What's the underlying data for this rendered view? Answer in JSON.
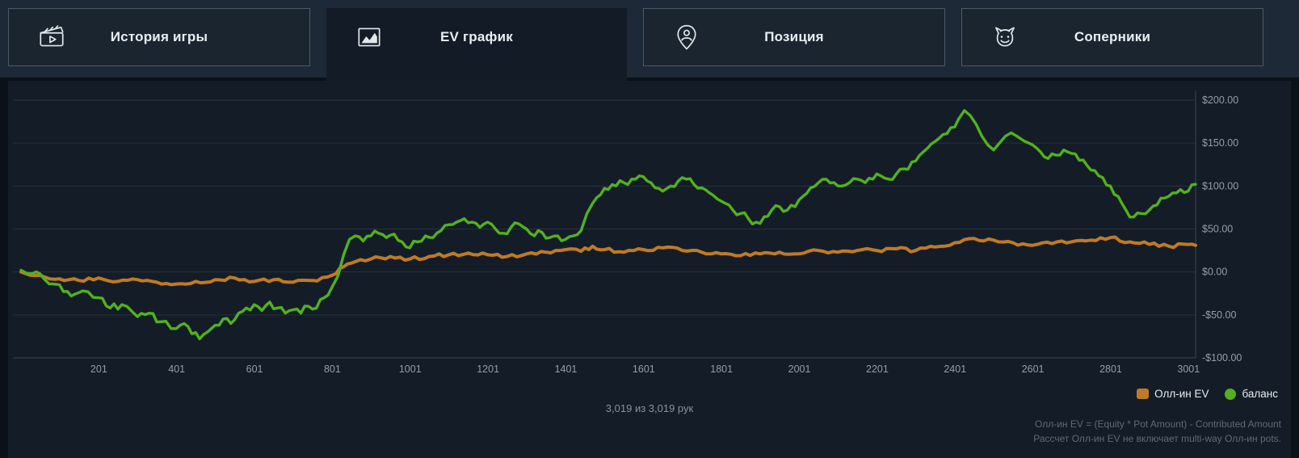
{
  "tabs": [
    {
      "label": "История игры",
      "active": false
    },
    {
      "label": "EV график",
      "active": true
    },
    {
      "label": "Позиция",
      "active": false
    },
    {
      "label": "Соперники",
      "active": false
    }
  ],
  "status": {
    "hands_text": "3,019 из 3,019 рук"
  },
  "legend": [
    {
      "label": "Олл-ин EV",
      "color": "#c07a26",
      "shape": "square"
    },
    {
      "label": "баланс",
      "color": "#53b11c",
      "shape": "circle"
    }
  ],
  "footnote": {
    "line1": "Олл-ин EV = (Equity * Pot Amount) - Contributed Amount",
    "line2": "Рассчет Олл-ин EV не включает multi-way Олл-ин pots."
  },
  "chart_data": {
    "type": "line",
    "title": "",
    "xlabel": "",
    "ylabel": "",
    "xlim": [
      1,
      3019
    ],
    "ylim": [
      -100,
      200
    ],
    "grid": true,
    "legend_position": "bottom-right",
    "x_ticks": [
      201,
      401,
      601,
      801,
      1001,
      1201,
      1401,
      1601,
      1801,
      2001,
      2201,
      2401,
      2601,
      2801,
      3001
    ],
    "y_ticks": [
      {
        "value": 200,
        "label": "$200.00"
      },
      {
        "value": 150,
        "label": "$150.00"
      },
      {
        "value": 100,
        "label": "$100.00"
      },
      {
        "value": 50,
        "label": "$50.00"
      },
      {
        "value": 0,
        "label": "$0.00"
      },
      {
        "value": -50,
        "label": "-$50.00"
      },
      {
        "value": -100,
        "label": "-$100.00"
      }
    ],
    "series": [
      {
        "name": "Олл-ин EV",
        "color": "#c07a26",
        "points": [
          [
            1,
            0
          ],
          [
            50,
            -4
          ],
          [
            100,
            -8
          ],
          [
            150,
            -10
          ],
          [
            200,
            -7
          ],
          [
            250,
            -11
          ],
          [
            300,
            -9
          ],
          [
            350,
            -12
          ],
          [
            400,
            -14
          ],
          [
            450,
            -11
          ],
          [
            500,
            -9
          ],
          [
            550,
            -7
          ],
          [
            600,
            -11
          ],
          [
            650,
            -9
          ],
          [
            700,
            -12
          ],
          [
            750,
            -10
          ],
          [
            800,
            -4
          ],
          [
            830,
            6
          ],
          [
            860,
            12
          ],
          [
            900,
            15
          ],
          [
            950,
            18
          ],
          [
            1000,
            15
          ],
          [
            1050,
            18
          ],
          [
            1100,
            20
          ],
          [
            1150,
            22
          ],
          [
            1200,
            20
          ],
          [
            1250,
            18
          ],
          [
            1300,
            21
          ],
          [
            1350,
            23
          ],
          [
            1400,
            26
          ],
          [
            1440,
            24
          ],
          [
            1470,
            30
          ],
          [
            1500,
            26
          ],
          [
            1550,
            23
          ],
          [
            1600,
            26
          ],
          [
            1650,
            28
          ],
          [
            1700,
            25
          ],
          [
            1750,
            23
          ],
          [
            1800,
            21
          ],
          [
            1850,
            19
          ],
          [
            1900,
            21
          ],
          [
            1950,
            23
          ],
          [
            2000,
            21
          ],
          [
            2050,
            25
          ],
          [
            2100,
            23
          ],
          [
            2150,
            25
          ],
          [
            2200,
            25
          ],
          [
            2250,
            27
          ],
          [
            2300,
            25
          ],
          [
            2350,
            29
          ],
          [
            2400,
            34
          ],
          [
            2450,
            39
          ],
          [
            2500,
            37
          ],
          [
            2550,
            34
          ],
          [
            2600,
            31
          ],
          [
            2650,
            33
          ],
          [
            2700,
            35
          ],
          [
            2750,
            37
          ],
          [
            2800,
            40
          ],
          [
            2850,
            35
          ],
          [
            2900,
            32
          ],
          [
            2950,
            30
          ],
          [
            3000,
            32
          ],
          [
            3019,
            31
          ]
        ]
      },
      {
        "name": "баланс",
        "color": "#53b11c",
        "points": [
          [
            1,
            2
          ],
          [
            30,
            -2
          ],
          [
            60,
            -8
          ],
          [
            100,
            -15
          ],
          [
            130,
            -28
          ],
          [
            160,
            -22
          ],
          [
            200,
            -30
          ],
          [
            230,
            -42
          ],
          [
            260,
            -38
          ],
          [
            300,
            -52
          ],
          [
            330,
            -48
          ],
          [
            360,
            -58
          ],
          [
            400,
            -66
          ],
          [
            420,
            -60
          ],
          [
            440,
            -72
          ],
          [
            460,
            -78
          ],
          [
            480,
            -70
          ],
          [
            500,
            -62
          ],
          [
            520,
            -55
          ],
          [
            540,
            -60
          ],
          [
            560,
            -48
          ],
          [
            580,
            -42
          ],
          [
            600,
            -38
          ],
          [
            620,
            -45
          ],
          [
            640,
            -35
          ],
          [
            660,
            -42
          ],
          [
            680,
            -48
          ],
          [
            700,
            -44
          ],
          [
            720,
            -48
          ],
          [
            740,
            -40
          ],
          [
            760,
            -42
          ],
          [
            780,
            -30
          ],
          [
            800,
            -18
          ],
          [
            815,
            -5
          ],
          [
            830,
            20
          ],
          [
            845,
            38
          ],
          [
            860,
            42
          ],
          [
            880,
            36
          ],
          [
            900,
            42
          ],
          [
            920,
            45
          ],
          [
            940,
            40
          ],
          [
            960,
            44
          ],
          [
            980,
            35
          ],
          [
            1000,
            28
          ],
          [
            1020,
            35
          ],
          [
            1040,
            42
          ],
          [
            1060,
            40
          ],
          [
            1080,
            48
          ],
          [
            1100,
            55
          ],
          [
            1120,
            58
          ],
          [
            1140,
            62
          ],
          [
            1160,
            58
          ],
          [
            1180,
            52
          ],
          [
            1200,
            58
          ],
          [
            1220,
            50
          ],
          [
            1240,
            45
          ],
          [
            1260,
            52
          ],
          [
            1280,
            56
          ],
          [
            1300,
            50
          ],
          [
            1320,
            42
          ],
          [
            1340,
            46
          ],
          [
            1360,
            40
          ],
          [
            1380,
            42
          ],
          [
            1400,
            38
          ],
          [
            1420,
            42
          ],
          [
            1440,
            48
          ],
          [
            1455,
            68
          ],
          [
            1470,
            80
          ],
          [
            1490,
            90
          ],
          [
            1510,
            96
          ],
          [
            1530,
            100
          ],
          [
            1550,
            104
          ],
          [
            1570,
            108
          ],
          [
            1590,
            112
          ],
          [
            1610,
            106
          ],
          [
            1630,
            98
          ],
          [
            1650,
            94
          ],
          [
            1670,
            100
          ],
          [
            1690,
            106
          ],
          [
            1710,
            108
          ],
          [
            1730,
            102
          ],
          [
            1750,
            98
          ],
          [
            1770,
            92
          ],
          [
            1790,
            85
          ],
          [
            1810,
            80
          ],
          [
            1830,
            72
          ],
          [
            1850,
            68
          ],
          [
            1870,
            62
          ],
          [
            1890,
            58
          ],
          [
            1910,
            64
          ],
          [
            1930,
            72
          ],
          [
            1950,
            76
          ],
          [
            1970,
            72
          ],
          [
            1990,
            76
          ],
          [
            2010,
            88
          ],
          [
            2030,
            98
          ],
          [
            2050,
            104
          ],
          [
            2070,
            108
          ],
          [
            2090,
            104
          ],
          [
            2110,
            100
          ],
          [
            2130,
            104
          ],
          [
            2150,
            108
          ],
          [
            2170,
            104
          ],
          [
            2190,
            108
          ],
          [
            2210,
            112
          ],
          [
            2230,
            108
          ],
          [
            2250,
            114
          ],
          [
            2270,
            120
          ],
          [
            2290,
            128
          ],
          [
            2310,
            136
          ],
          [
            2330,
            144
          ],
          [
            2350,
            152
          ],
          [
            2370,
            160
          ],
          [
            2390,
            168
          ],
          [
            2410,
            178
          ],
          [
            2425,
            188
          ],
          [
            2440,
            182
          ],
          [
            2455,
            172
          ],
          [
            2470,
            158
          ],
          [
            2485,
            148
          ],
          [
            2500,
            142
          ],
          [
            2515,
            150
          ],
          [
            2530,
            158
          ],
          [
            2545,
            162
          ],
          [
            2560,
            158
          ],
          [
            2580,
            152
          ],
          [
            2600,
            148
          ],
          [
            2620,
            140
          ],
          [
            2640,
            132
          ],
          [
            2660,
            136
          ],
          [
            2680,
            142
          ],
          [
            2700,
            138
          ],
          [
            2720,
            130
          ],
          [
            2740,
            124
          ],
          [
            2760,
            118
          ],
          [
            2780,
            110
          ],
          [
            2800,
            100
          ],
          [
            2820,
            88
          ],
          [
            2840,
            72
          ],
          [
            2860,
            64
          ],
          [
            2880,
            68
          ],
          [
            2900,
            72
          ],
          [
            2920,
            78
          ],
          [
            2940,
            86
          ],
          [
            2960,
            92
          ],
          [
            2980,
            96
          ],
          [
            3000,
            94
          ],
          [
            3019,
            102
          ]
        ]
      }
    ]
  }
}
